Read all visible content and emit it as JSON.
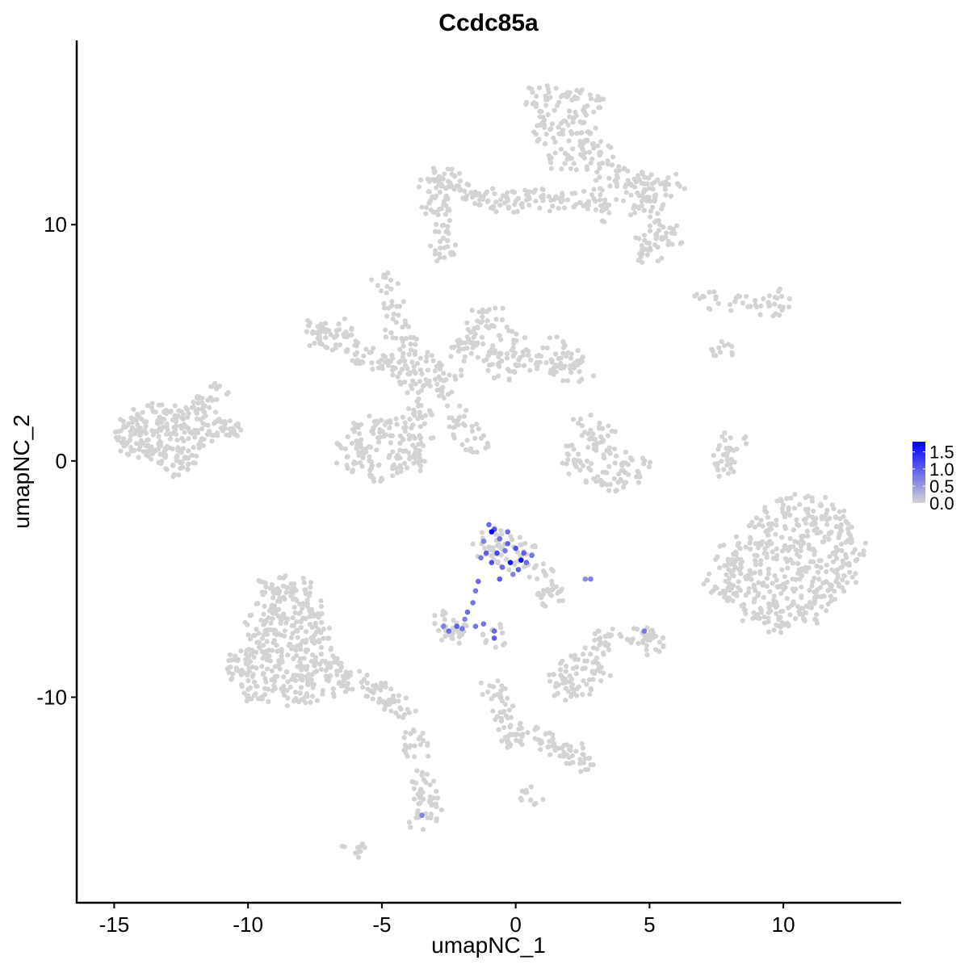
{
  "chart_data": {
    "type": "scatter",
    "title": "Ccdc85a",
    "xlabel": "umapNC_1",
    "ylabel": "umapNC_2",
    "xlim": [
      -16.4,
      14.4
    ],
    "ylim": [
      -18.7,
      17.8
    ],
    "x_ticks": [
      -15,
      -10,
      -5,
      0,
      5,
      10
    ],
    "x_tick_labels": [
      "-15",
      "-10",
      "-5",
      "0",
      "5",
      "10"
    ],
    "y_ticks": [
      -10,
      0,
      10
    ],
    "y_tick_labels": [
      "-10",
      "0",
      "10"
    ],
    "grid": false,
    "color_scale": {
      "low": "#D3D3D3",
      "high": "#0000FF",
      "min": 0,
      "max": 1.8
    },
    "legend": {
      "placement": "right",
      "ticks": [
        0.0,
        0.5,
        1.0,
        1.5
      ],
      "tick_labels": [
        "0.0",
        "0.5",
        "1.0",
        "1.5"
      ]
    },
    "points_nonexpressing": [
      [
        -14.8,
        0.8
      ],
      [
        -14.5,
        1.3
      ],
      [
        -14.2,
        0.5
      ],
      [
        -14,
        1.6
      ],
      [
        -13.7,
        1
      ],
      [
        -13.5,
        2
      ],
      [
        -13.3,
        0.3
      ],
      [
        -13,
        1.4
      ],
      [
        -12.8,
        0.7
      ],
      [
        -12.6,
        2.1
      ],
      [
        -12.4,
        1.1
      ],
      [
        -12.2,
        0.2
      ],
      [
        -12,
        1.7
      ],
      [
        -11.8,
        1
      ],
      [
        -11.6,
        2.4
      ],
      [
        -11.4,
        1.5
      ],
      [
        -11.2,
        2.8
      ],
      [
        -11,
        1.4
      ],
      [
        -10.7,
        1.4
      ],
      [
        -13.9,
        0.2
      ],
      [
        -12.9,
        -0.2
      ],
      [
        -12.5,
        -0.3
      ],
      [
        -13.2,
        1.9
      ],
      [
        -12.1,
        2.3
      ],
      [
        -14.3,
        1.8
      ],
      [
        0.8,
        15.4
      ],
      [
        1.5,
        15.5
      ],
      [
        2.3,
        15.3
      ],
      [
        2.9,
        15
      ],
      [
        1,
        14.6
      ],
      [
        1.8,
        14.5
      ],
      [
        2.6,
        14.3
      ],
      [
        1.2,
        13.8
      ],
      [
        2,
        13.6
      ],
      [
        2.8,
        13.5
      ],
      [
        1.6,
        12.8
      ],
      [
        2.4,
        12.7
      ],
      [
        3.2,
        12.9
      ],
      [
        3.4,
        12.2
      ],
      [
        4,
        12
      ],
      [
        4.6,
        11.8
      ],
      [
        5.2,
        11.8
      ],
      [
        5.8,
        11.7
      ],
      [
        3.6,
        11.3
      ],
      [
        4.4,
        11.2
      ],
      [
        5.2,
        11.1
      ],
      [
        4.8,
        10.4
      ],
      [
        5.5,
        9.9
      ],
      [
        5.9,
        9.6
      ],
      [
        4.8,
        9.2
      ],
      [
        5,
        8.8
      ],
      [
        1,
        11
      ],
      [
        1.8,
        11
      ],
      [
        2.6,
        11.2
      ],
      [
        3,
        10.5
      ],
      [
        -3.2,
        11.8
      ],
      [
        -2.8,
        12
      ],
      [
        -2.4,
        11.9
      ],
      [
        -2.8,
        11.2
      ],
      [
        -2,
        11.5
      ],
      [
        -1.5,
        11.3
      ],
      [
        -1,
        11.1
      ],
      [
        -0.5,
        11
      ],
      [
        0,
        11
      ],
      [
        0.6,
        11.2
      ],
      [
        -3,
        10.8
      ],
      [
        -2.8,
        10.3
      ],
      [
        -2.8,
        8.9
      ],
      [
        -2.7,
        9.3
      ],
      [
        -7.5,
        5.7
      ],
      [
        -7,
        5.5
      ],
      [
        -6.5,
        5.6
      ],
      [
        -7.2,
        5
      ],
      [
        -6.2,
        4.9
      ],
      [
        -5.8,
        4.6
      ],
      [
        -5.2,
        4.3
      ],
      [
        -4.7,
        4
      ],
      [
        -4.2,
        3.8
      ],
      [
        -3.8,
        3.3
      ],
      [
        -3.3,
        3
      ],
      [
        -2.8,
        3.1
      ],
      [
        -4.9,
        7.6
      ],
      [
        -4.6,
        6.5
      ],
      [
        -4.4,
        5.5
      ],
      [
        -4,
        4.8
      ],
      [
        -3.6,
        4.2
      ],
      [
        -2.5,
        3.8
      ],
      [
        -2,
        4.5
      ],
      [
        -1.7,
        5.3
      ],
      [
        -1.3,
        6
      ],
      [
        -0.8,
        6.1
      ],
      [
        -1.2,
        4.8
      ],
      [
        -0.8,
        4.5
      ],
      [
        -0.2,
        4.3
      ],
      [
        0.5,
        4.3
      ],
      [
        1.2,
        4.2
      ],
      [
        1.5,
        4.8
      ],
      [
        2,
        4.3
      ],
      [
        2.4,
        3.8
      ],
      [
        1.8,
        3.6
      ],
      [
        -0.2,
        5.2
      ],
      [
        -0.5,
        3.8
      ],
      [
        -3.5,
        2.2
      ],
      [
        -3.9,
        1.7
      ],
      [
        -4.4,
        1.3
      ],
      [
        -5,
        1.4
      ],
      [
        -5.6,
        1.5
      ],
      [
        -6.2,
        0.9
      ],
      [
        -6.2,
        0.1
      ],
      [
        -5.6,
        -0.3
      ],
      [
        -5,
        -0.6
      ],
      [
        -4.4,
        -0.2
      ],
      [
        -3.9,
        0.3
      ],
      [
        -3.6,
        1
      ],
      [
        -4.5,
        0.6
      ],
      [
        -5.4,
        0.6
      ],
      [
        -2.3,
        1.9
      ],
      [
        -1.9,
        1.3
      ],
      [
        -1.5,
        0.8
      ],
      [
        -3.9,
        -0.1
      ],
      [
        2,
        0.2
      ],
      [
        2.4,
        -0.4
      ],
      [
        3,
        -0.8
      ],
      [
        3.6,
        -0.9
      ],
      [
        4.2,
        -0.8
      ],
      [
        4.5,
        -0.2
      ],
      [
        3.2,
        0.6
      ],
      [
        3.2,
        1.2
      ],
      [
        2.6,
        1.5
      ],
      [
        3.7,
        0.2
      ],
      [
        8.1,
        0.8
      ],
      [
        7.8,
        0.1
      ],
      [
        7.7,
        -0.2
      ],
      [
        7.2,
        6.9
      ],
      [
        8.5,
        6.6
      ],
      [
        9.5,
        6.5
      ],
      [
        9.9,
        6.8
      ],
      [
        7.7,
        4.8
      ],
      [
        9.8,
        -2
      ],
      [
        10.6,
        -1.8
      ],
      [
        11.4,
        -2
      ],
      [
        12,
        -2.4
      ],
      [
        9.2,
        -2.7
      ],
      [
        10,
        -2.7
      ],
      [
        10.8,
        -2.6
      ],
      [
        11.6,
        -2.8
      ],
      [
        12.4,
        -3
      ],
      [
        8.7,
        -3.4
      ],
      [
        9.5,
        -3.4
      ],
      [
        10.3,
        -3.4
      ],
      [
        11.1,
        -3.4
      ],
      [
        11.9,
        -3.5
      ],
      [
        12.6,
        -3.7
      ],
      [
        8.5,
        -4.2
      ],
      [
        9.3,
        -4.2
      ],
      [
        10.1,
        -4.1
      ],
      [
        10.9,
        -4.2
      ],
      [
        11.7,
        -4.2
      ],
      [
        12.4,
        -4.4
      ],
      [
        8.4,
        -5
      ],
      [
        9.2,
        -5
      ],
      [
        10,
        -5
      ],
      [
        10.8,
        -5
      ],
      [
        11.6,
        -5
      ],
      [
        12.2,
        -5.2
      ],
      [
        8.5,
        -5.8
      ],
      [
        9.3,
        -5.8
      ],
      [
        10.1,
        -5.8
      ],
      [
        10.9,
        -5.8
      ],
      [
        11.6,
        -5.8
      ],
      [
        8.8,
        -6.5
      ],
      [
        9.6,
        -6.6
      ],
      [
        10.4,
        -6.6
      ],
      [
        11.1,
        -6.4
      ],
      [
        9.8,
        -7
      ],
      [
        7.8,
        -4
      ],
      [
        7.7,
        -4.6
      ],
      [
        7.5,
        -5.4
      ],
      [
        7.9,
        -5.6
      ],
      [
        -9.1,
        -5.2
      ],
      [
        -8.6,
        -5.3
      ],
      [
        -8.1,
        -5.4
      ],
      [
        -9.3,
        -6
      ],
      [
        -8.7,
        -6
      ],
      [
        -8.1,
        -6
      ],
      [
        -7.6,
        -6.2
      ],
      [
        -9.6,
        -6.8
      ],
      [
        -9,
        -6.8
      ],
      [
        -8.4,
        -6.8
      ],
      [
        -7.8,
        -6.8
      ],
      [
        -7.3,
        -7.2
      ],
      [
        -9.8,
        -7.6
      ],
      [
        -9.2,
        -7.6
      ],
      [
        -8.6,
        -7.6
      ],
      [
        -8,
        -7.6
      ],
      [
        -7.4,
        -7.8
      ],
      [
        -10.3,
        -8.5
      ],
      [
        -9.7,
        -8.4
      ],
      [
        -9.1,
        -8.4
      ],
      [
        -8.5,
        -8.4
      ],
      [
        -7.9,
        -8.4
      ],
      [
        -7.2,
        -8.5
      ],
      [
        -10.5,
        -9.2
      ],
      [
        -9.9,
        -9.2
      ],
      [
        -9.3,
        -9.2
      ],
      [
        -8.7,
        -9.2
      ],
      [
        -8.1,
        -9.2
      ],
      [
        -7.5,
        -9.2
      ],
      [
        -9.8,
        -9.9
      ],
      [
        -9,
        -9.9
      ],
      [
        -8.3,
        -10
      ],
      [
        -7.7,
        -9.9
      ],
      [
        -6.9,
        -8.8
      ],
      [
        -6.4,
        -9
      ],
      [
        -6,
        -9.3
      ],
      [
        -5.5,
        -9.6
      ],
      [
        -5,
        -9.8
      ],
      [
        -4.6,
        -10.2
      ],
      [
        -4.2,
        -10.4
      ],
      [
        -6.8,
        -9.6
      ],
      [
        -3.8,
        -11.8
      ],
      [
        -3.7,
        -12.2
      ],
      [
        -3.6,
        -13.5
      ],
      [
        -3.4,
        -14.1
      ],
      [
        -3.3,
        -14.7
      ],
      [
        -3.5,
        -15.2
      ],
      [
        -6,
        -16.3
      ],
      [
        -0.8,
        -3.3
      ],
      [
        -0.2,
        -3.5
      ],
      [
        0.4,
        -4
      ],
      [
        0.9,
        -4.6
      ],
      [
        1.2,
        -5.3
      ],
      [
        1.3,
        -5.7
      ],
      [
        -1.2,
        -3.8
      ],
      [
        -0.5,
        -4.2
      ],
      [
        -2.6,
        -6.8
      ],
      [
        -2.2,
        -7.2
      ],
      [
        -2.5,
        -7.4
      ],
      [
        1.7,
        -9.2
      ],
      [
        2.2,
        -8.7
      ],
      [
        2.6,
        -8.4
      ],
      [
        3,
        -9.1
      ],
      [
        2.4,
        -9.6
      ],
      [
        1.9,
        -9.7
      ],
      [
        3.3,
        -7.8
      ],
      [
        3.4,
        -7.5
      ],
      [
        4.7,
        -7.5
      ],
      [
        5.1,
        -7.3
      ],
      [
        5.1,
        -7.8
      ],
      [
        -0.8,
        -9.6
      ],
      [
        -0.5,
        -10.4
      ],
      [
        -0.3,
        -10.9
      ],
      [
        -0.2,
        -11.6
      ],
      [
        -0.1,
        -12
      ],
      [
        0.6,
        -11.6
      ],
      [
        1.3,
        -11.9
      ],
      [
        1.7,
        -12.2
      ],
      [
        2.2,
        -12.4
      ],
      [
        2.4,
        -12.8
      ],
      [
        0.7,
        -14.2
      ],
      [
        -0.7,
        -7.4
      ]
    ],
    "points_expressing": [
      [
        -1,
        -2.7,
        0.9
      ],
      [
        -0.8,
        -2.9,
        1.1
      ],
      [
        -0.9,
        -3.0,
        1.8
      ],
      [
        -0.6,
        -3.3,
        0.9
      ],
      [
        -1.2,
        -3.4,
        0.7
      ],
      [
        -0.3,
        -3.5,
        1.0
      ],
      [
        -1.1,
        -3.9,
        1.0
      ],
      [
        -0.7,
        -3.9,
        1.2
      ],
      [
        -0.4,
        -3.8,
        0.8
      ],
      [
        0,
        -3.7,
        1.1
      ],
      [
        0.3,
        -3.9,
        1.0
      ],
      [
        -0.9,
        -4.3,
        1.1
      ],
      [
        -0.5,
        -4.5,
        0.9
      ],
      [
        -0.2,
        -4.3,
        1.6
      ],
      [
        0.1,
        -4.6,
        1.0
      ],
      [
        0.4,
        -4.3,
        0.9
      ],
      [
        -1.3,
        -4.1,
        0.8
      ],
      [
        -0.1,
        -4.8,
        0.7
      ],
      [
        -0.6,
        -5.0,
        1.0
      ],
      [
        0.6,
        -4.0,
        0.8
      ],
      [
        -0.3,
        -3.0,
        0.9
      ],
      [
        0.2,
        -4.2,
        1.7
      ],
      [
        -1.4,
        -5.1,
        0.9
      ],
      [
        -1.5,
        -5.5,
        0.8
      ],
      [
        -1.6,
        -6.0,
        0.8
      ],
      [
        -1.8,
        -6.4,
        0.9
      ],
      [
        -1.9,
        -6.7,
        0.7
      ],
      [
        -2.2,
        -7.0,
        1.0
      ],
      [
        -2.5,
        -7.2,
        0.9
      ],
      [
        -2.0,
        -7.1,
        0.8
      ],
      [
        -2.7,
        -7.0,
        0.7
      ],
      [
        -1.2,
        -6.9,
        0.8
      ],
      [
        -0.8,
        -7.2,
        0.9
      ],
      [
        -0.8,
        -7.5,
        1.0
      ],
      [
        -1.5,
        -7.0,
        0.8
      ],
      [
        2.8,
        -5.0,
        0.7
      ],
      [
        2.6,
        -5.0,
        0.6
      ],
      [
        4.8,
        -7.2,
        0.8
      ],
      [
        -3.5,
        -15.0,
        0.7
      ]
    ]
  }
}
